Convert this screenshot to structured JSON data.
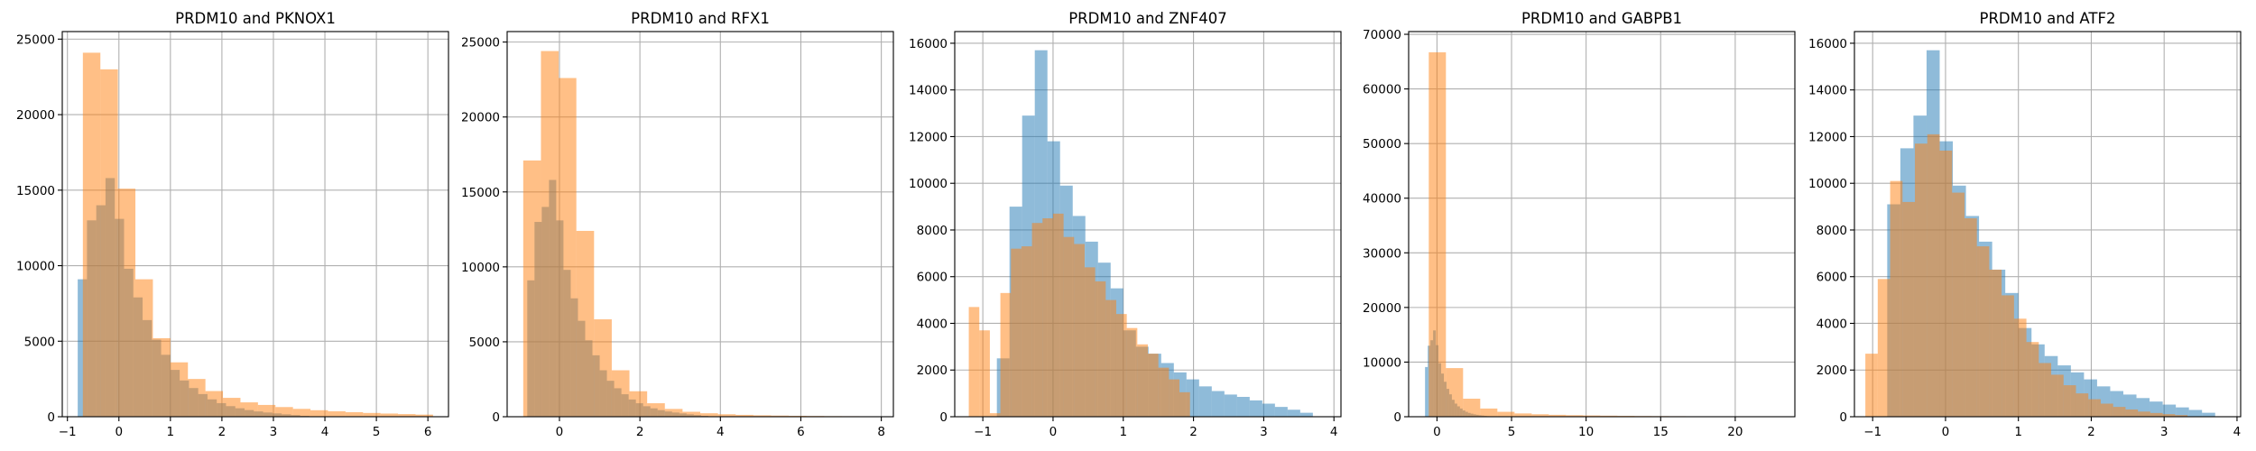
{
  "figure": {
    "background": "#ffffff"
  },
  "colors": {
    "series_a": "#1f77b4",
    "series_b": "#ff7f0e",
    "alpha": 0.5,
    "grid": "#b0b0b0"
  },
  "chart_data": [
    {
      "type": "histogram",
      "title": "PRDM10 and PKNOX1",
      "xlim": [
        -1.1,
        6.4
      ],
      "ylim": [
        0,
        25500
      ],
      "xticks": [
        -1,
        0,
        1,
        2,
        3,
        4,
        5,
        6
      ],
      "yticks": [
        0,
        5000,
        10000,
        15000,
        20000,
        25000
      ],
      "grid": true,
      "series": [
        {
          "bins": [
            -0.8,
            -0.62,
            -0.44,
            -0.26,
            -0.08,
            0.1,
            0.28,
            0.46,
            0.64,
            0.82,
            1.0,
            1.18,
            1.36,
            1.54,
            1.72,
            1.9,
            2.08,
            2.26,
            2.44,
            2.62,
            2.8,
            2.98,
            3.16,
            3.34,
            3.52,
            3.7
          ],
          "counts": [
            9100,
            13000,
            14000,
            15800,
            13100,
            9800,
            7900,
            6400,
            5100,
            4100,
            3100,
            2400,
            1900,
            1500,
            1150,
            900,
            700,
            560,
            440,
            350,
            280,
            220,
            160,
            110,
            60
          ]
        },
        {
          "bins": [
            -0.7,
            -0.36,
            -0.02,
            0.32,
            0.66,
            1.0,
            1.34,
            1.68,
            2.02,
            2.36,
            2.7,
            3.04,
            3.38,
            3.72,
            4.06,
            4.4,
            4.74,
            5.08,
            5.42,
            5.76,
            6.1
          ],
          "counts": [
            24100,
            23000,
            15100,
            9100,
            5200,
            3600,
            2500,
            1700,
            1250,
            950,
            780,
            640,
            520,
            430,
            360,
            300,
            250,
            210,
            175,
            140
          ]
        }
      ]
    },
    {
      "type": "histogram",
      "title": "PRDM10 and RFX1",
      "xlim": [
        -1.3,
        8.3
      ],
      "ylim": [
        0,
        25700
      ],
      "xticks": [
        0,
        2,
        4,
        6,
        8
      ],
      "yticks": [
        0,
        5000,
        10000,
        15000,
        20000,
        25000
      ],
      "grid": true,
      "series": [
        {
          "bins": [
            -0.8,
            -0.62,
            -0.44,
            -0.26,
            -0.08,
            0.1,
            0.28,
            0.46,
            0.64,
            0.82,
            1.0,
            1.18,
            1.36,
            1.54,
            1.72,
            1.9,
            2.08,
            2.26,
            2.44,
            2.62,
            2.8,
            2.98,
            3.16,
            3.34,
            3.52,
            3.7
          ],
          "counts": [
            9100,
            13000,
            14000,
            15800,
            13100,
            9800,
            7900,
            6400,
            5100,
            4100,
            3100,
            2400,
            1900,
            1500,
            1150,
            900,
            700,
            560,
            440,
            350,
            280,
            220,
            160,
            110,
            60
          ]
        },
        {
          "bins": [
            -0.9,
            -0.46,
            -0.02,
            0.42,
            0.86,
            1.3,
            1.74,
            2.18,
            2.62,
            3.06,
            3.5,
            3.94,
            4.38,
            4.82,
            5.26,
            5.7,
            6.14,
            6.58,
            7.02,
            7.46,
            7.9
          ],
          "counts": [
            17100,
            24400,
            22600,
            12400,
            6500,
            3100,
            1700,
            900,
            520,
            330,
            230,
            165,
            125,
            95,
            75,
            60,
            50,
            40,
            35,
            30
          ]
        }
      ]
    },
    {
      "type": "histogram",
      "title": "PRDM10 and ZNF407",
      "xlim": [
        -1.4,
        4.1
      ],
      "ylim": [
        0,
        16500
      ],
      "xticks": [
        -1,
        0,
        1,
        2,
        3,
        4
      ],
      "yticks": [
        0,
        2000,
        4000,
        6000,
        8000,
        10000,
        12000,
        14000,
        16000
      ],
      "grid": true,
      "series": [
        {
          "bins": [
            -0.8,
            -0.62,
            -0.44,
            -0.26,
            -0.08,
            0.1,
            0.28,
            0.46,
            0.64,
            0.82,
            1.0,
            1.18,
            1.36,
            1.54,
            1.72,
            1.9,
            2.08,
            2.26,
            2.44,
            2.62,
            2.8,
            2.98,
            3.16,
            3.34,
            3.52,
            3.7
          ],
          "counts": [
            2500,
            9000,
            12900,
            15700,
            11800,
            9900,
            8600,
            7500,
            6600,
            5500,
            3700,
            3000,
            2700,
            2300,
            1900,
            1600,
            1300,
            1100,
            950,
            850,
            700,
            560,
            420,
            300,
            170
          ]
        },
        {
          "bins": [
            -1.2,
            -1.05,
            -0.9,
            -0.75,
            -0.6,
            -0.45,
            -0.3,
            -0.15,
            0.0,
            0.15,
            0.3,
            0.45,
            0.6,
            0.75,
            0.9,
            1.05,
            1.2,
            1.35,
            1.5,
            1.65,
            1.8,
            1.95
          ],
          "counts": [
            4700,
            3700,
            150,
            5300,
            7200,
            7300,
            8300,
            8500,
            8700,
            7700,
            7400,
            6400,
            5800,
            5000,
            4400,
            3800,
            3100,
            2700,
            2100,
            1600,
            1050
          ]
        }
      ]
    },
    {
      "type": "histogram",
      "title": "PRDM10 and GABPB1",
      "xlim": [
        -1.9,
        24.0
      ],
      "ylim": [
        0,
        70500
      ],
      "xticks": [
        0,
        5,
        10,
        15,
        20
      ],
      "yticks": [
        0,
        10000,
        20000,
        30000,
        40000,
        50000,
        60000,
        70000
      ],
      "grid": true,
      "series": [
        {
          "bins": [
            -0.8,
            -0.62,
            -0.44,
            -0.26,
            -0.08,
            0.1,
            0.28,
            0.46,
            0.64,
            0.82,
            1.0,
            1.18,
            1.36,
            1.54,
            1.72,
            1.9,
            2.08,
            2.26,
            2.44,
            2.62,
            2.8,
            2.98,
            3.16,
            3.34,
            3.52,
            3.7
          ],
          "counts": [
            9100,
            13000,
            14000,
            15800,
            13100,
            9800,
            7900,
            6400,
            5100,
            4100,
            3100,
            2400,
            1900,
            1500,
            1150,
            900,
            700,
            560,
            440,
            350,
            280,
            220,
            160,
            110,
            60
          ]
        },
        {
          "bins": [
            -0.55,
            0.6,
            1.75,
            2.9,
            4.05,
            5.2,
            6.35,
            7.5,
            8.65,
            9.8,
            10.95,
            12.1,
            13.25,
            14.4,
            15.55,
            16.7,
            17.85,
            19.0,
            20.15,
            21.3,
            22.45,
            23.6
          ],
          "counts": [
            66700,
            8900,
            3300,
            1500,
            900,
            600,
            450,
            350,
            280,
            230,
            190,
            160,
            130,
            110,
            95,
            80,
            70,
            60,
            50,
            45,
            40
          ]
        }
      ]
    },
    {
      "type": "histogram",
      "title": "PRDM10 and ATF2",
      "xlim": [
        -1.25,
        4.05
      ],
      "ylim": [
        0,
        16500
      ],
      "xticks": [
        -1,
        0,
        1,
        2,
        3,
        4
      ],
      "yticks": [
        0,
        2000,
        4000,
        6000,
        8000,
        10000,
        12000,
        14000,
        16000
      ],
      "grid": true,
      "series": [
        {
          "bins": [
            -0.8,
            -0.62,
            -0.44,
            -0.26,
            -0.08,
            0.1,
            0.28,
            0.46,
            0.64,
            0.82,
            1.0,
            1.18,
            1.36,
            1.54,
            1.72,
            1.9,
            2.08,
            2.26,
            2.44,
            2.62,
            2.8,
            2.98,
            3.16,
            3.34,
            3.52,
            3.7
          ],
          "counts": [
            9100,
            11500,
            12900,
            15700,
            11800,
            9900,
            8600,
            7500,
            6300,
            5300,
            3800,
            3100,
            2600,
            2200,
            1900,
            1600,
            1300,
            1100,
            950,
            800,
            650,
            520,
            400,
            290,
            170
          ]
        },
        {
          "bins": [
            -1.1,
            -0.93,
            -0.76,
            -0.59,
            -0.42,
            -0.25,
            -0.08,
            0.09,
            0.26,
            0.43,
            0.6,
            0.77,
            0.94,
            1.11,
            1.28,
            1.45,
            1.62,
            1.79,
            1.96,
            2.13,
            2.3,
            2.47,
            2.64,
            2.81,
            2.98,
            3.15,
            3.32
          ],
          "counts": [
            2700,
            5900,
            10100,
            9200,
            11700,
            12100,
            11400,
            9600,
            8500,
            7300,
            6300,
            5200,
            4200,
            3200,
            2300,
            1800,
            1350,
            1000,
            750,
            560,
            420,
            310,
            220,
            160,
            110,
            70
          ]
        }
      ]
    }
  ]
}
